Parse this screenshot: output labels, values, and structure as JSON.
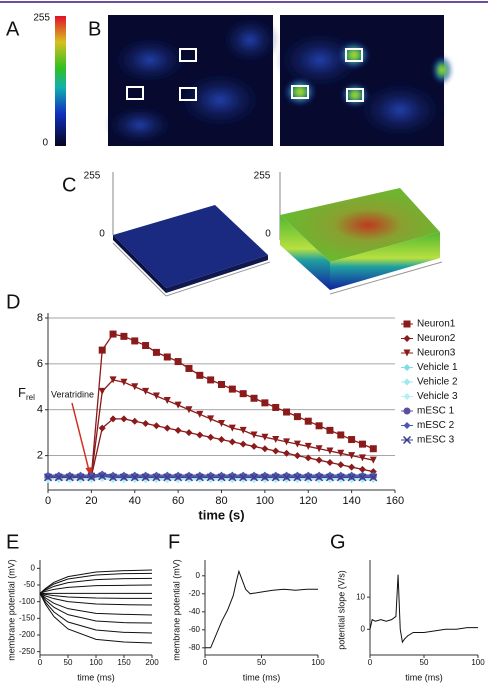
{
  "figure": {
    "panel_labels": [
      "A",
      "B",
      "C",
      "D",
      "E",
      "F",
      "G"
    ],
    "colorbar_labels": [
      "255",
      "0"
    ],
    "surface_labels": [
      [
        "255",
        "0"
      ],
      [
        "255",
        "0"
      ]
    ]
  },
  "chart_data": [
    {
      "type": "line",
      "panel": "D",
      "xlabel": "time (s)",
      "ylabel": "F",
      "ylabel_sub": "rel",
      "annotation": "Veratridine",
      "xlim": [
        0,
        160
      ],
      "xticks": [
        0,
        20,
        40,
        60,
        80,
        100,
        120,
        140,
        160
      ],
      "ylim": [
        0.5,
        8
      ],
      "yticks": [
        2,
        4,
        6,
        8
      ],
      "grid": true,
      "legend": "right",
      "x": [
        0,
        5,
        10,
        15,
        20,
        25,
        30,
        35,
        40,
        45,
        50,
        55,
        60,
        65,
        70,
        75,
        80,
        85,
        90,
        95,
        100,
        105,
        110,
        115,
        120,
        125,
        130,
        135,
        140,
        145,
        150
      ],
      "series": [
        {
          "name": "Neuron1",
          "color": "#8b1a1a",
          "marker": "square",
          "values": [
            1.05,
            1.05,
            1.05,
            1.05,
            1.1,
            6.6,
            7.3,
            7.2,
            7.0,
            6.8,
            6.5,
            6.3,
            6.1,
            5.8,
            5.5,
            5.3,
            5.1,
            4.9,
            4.7,
            4.5,
            4.3,
            4.1,
            3.9,
            3.7,
            3.5,
            3.3,
            3.1,
            2.9,
            2.7,
            2.5,
            2.3
          ]
        },
        {
          "name": "Neuron2",
          "color": "#8b1a1a",
          "marker": "diamond",
          "values": [
            1.05,
            1.05,
            1.05,
            1.05,
            1.1,
            3.2,
            3.6,
            3.6,
            3.5,
            3.4,
            3.3,
            3.2,
            3.1,
            3.0,
            2.9,
            2.8,
            2.7,
            2.6,
            2.5,
            2.4,
            2.3,
            2.2,
            2.1,
            2.0,
            1.9,
            1.8,
            1.7,
            1.6,
            1.5,
            1.4,
            1.3
          ]
        },
        {
          "name": "Neuron3",
          "color": "#8b1a1a",
          "marker": "triangle",
          "values": [
            1.05,
            1.05,
            1.05,
            1.05,
            1.1,
            4.8,
            5.3,
            5.2,
            5.0,
            4.8,
            4.6,
            4.4,
            4.2,
            4.0,
            3.8,
            3.6,
            3.4,
            3.2,
            3.1,
            2.9,
            2.8,
            2.7,
            2.6,
            2.5,
            2.4,
            2.3,
            2.2,
            2.1,
            2.0,
            1.9,
            1.8
          ]
        },
        {
          "name": "Vehicle 1",
          "color": "#7fdde8",
          "marker": "diamond",
          "values": [
            1.0,
            1.0,
            1.0,
            1.0,
            1.0,
            1.05,
            1.0,
            1.0,
            1.0,
            1.0,
            1.0,
            1.0,
            1.0,
            1.0,
            1.0,
            1.0,
            1.0,
            1.0,
            1.0,
            1.0,
            1.0,
            1.0,
            1.0,
            1.0,
            1.0,
            1.0,
            1.0,
            1.0,
            1.0,
            1.0,
            1.0
          ]
        },
        {
          "name": "Vehicle 2",
          "color": "#9ee8f0",
          "marker": "diamond",
          "values": [
            0.95,
            0.95,
            0.95,
            0.95,
            0.95,
            1.0,
            0.95,
            0.95,
            0.95,
            0.95,
            0.95,
            0.95,
            0.95,
            0.95,
            0.95,
            0.95,
            0.95,
            0.95,
            0.95,
            0.95,
            0.95,
            0.95,
            0.95,
            0.95,
            0.95,
            0.95,
            0.95,
            0.95,
            0.95,
            0.95,
            0.95
          ]
        },
        {
          "name": "Vehicle 3",
          "color": "#b5eef4",
          "marker": "diamond",
          "values": [
            0.98,
            0.98,
            0.98,
            0.98,
            0.98,
            1.02,
            0.98,
            0.98,
            0.98,
            0.98,
            0.98,
            0.98,
            0.98,
            0.98,
            0.98,
            0.98,
            0.98,
            0.98,
            0.98,
            0.98,
            0.98,
            0.98,
            0.98,
            0.98,
            0.98,
            0.98,
            0.98,
            0.98,
            0.98,
            0.98,
            0.98
          ]
        },
        {
          "name": "mESC 1",
          "color": "#5b4ea0",
          "marker": "circle",
          "values": [
            1.1,
            1.1,
            1.1,
            1.1,
            1.1,
            1.15,
            1.1,
            1.1,
            1.1,
            1.1,
            1.1,
            1.1,
            1.1,
            1.1,
            1.1,
            1.1,
            1.1,
            1.1,
            1.1,
            1.1,
            1.1,
            1.1,
            1.1,
            1.1,
            1.1,
            1.1,
            1.1,
            1.1,
            1.1,
            1.1,
            1.1
          ]
        },
        {
          "name": "mESC 2",
          "color": "#4a5ab0",
          "marker": "diamond",
          "values": [
            1.15,
            1.15,
            1.15,
            1.15,
            1.15,
            1.2,
            1.15,
            1.15,
            1.15,
            1.15,
            1.15,
            1.15,
            1.15,
            1.15,
            1.15,
            1.15,
            1.15,
            1.15,
            1.15,
            1.15,
            1.15,
            1.15,
            1.15,
            1.15,
            1.15,
            1.15,
            1.15,
            1.15,
            1.15,
            1.15,
            1.15
          ]
        },
        {
          "name": "mESC 3",
          "color": "#3d3d8f",
          "marker": "cross",
          "values": [
            1.05,
            1.05,
            1.05,
            1.05,
            1.05,
            1.1,
            1.05,
            1.05,
            1.05,
            1.05,
            1.05,
            1.05,
            1.05,
            1.05,
            1.05,
            1.05,
            1.05,
            1.05,
            1.05,
            1.05,
            1.05,
            1.05,
            1.05,
            1.05,
            1.05,
            1.05,
            1.05,
            1.05,
            1.05,
            1.05,
            1.05
          ]
        }
      ]
    },
    {
      "type": "line",
      "panel": "E",
      "xlabel": "time (ms)",
      "ylabel": "membrane potential (mV)",
      "xlim": [
        0,
        200
      ],
      "xticks": [
        0,
        50,
        100,
        150,
        200
      ],
      "ylim": [
        -260,
        10
      ],
      "yticks": [
        0,
        -50,
        -100,
        -150,
        -200,
        -250
      ],
      "x": [
        0,
        10,
        25,
        50,
        100,
        150,
        200
      ],
      "series": [
        {
          "color": "#111111",
          "values": [
            -75,
            -60,
            -42,
            -25,
            -11,
            -7,
            -5
          ]
        },
        {
          "color": "#111111",
          "values": [
            -75,
            -62,
            -47,
            -32,
            -20,
            -16,
            -15
          ]
        },
        {
          "color": "#111111",
          "values": [
            -75,
            -65,
            -54,
            -43,
            -34,
            -31,
            -30
          ]
        },
        {
          "color": "#111111",
          "values": [
            -75,
            -69,
            -63,
            -57,
            -52,
            -51,
            -50
          ]
        },
        {
          "color": "#111111",
          "values": [
            -75,
            -75,
            -75,
            -75,
            -75,
            -75,
            -75
          ]
        },
        {
          "color": "#111111",
          "values": [
            -75,
            -78,
            -82,
            -86,
            -89,
            -90,
            -90
          ]
        },
        {
          "color": "#111111",
          "values": [
            -75,
            -83,
            -91,
            -100,
            -107,
            -109,
            -110
          ]
        },
        {
          "color": "#111111",
          "values": [
            -75,
            -89,
            -105,
            -121,
            -135,
            -138,
            -140
          ]
        },
        {
          "color": "#111111",
          "values": [
            -75,
            -95,
            -117,
            -139,
            -158,
            -163,
            -164
          ]
        },
        {
          "color": "#111111",
          "values": [
            -75,
            -102,
            -131,
            -161,
            -185,
            -192,
            -194
          ]
        },
        {
          "color": "#111111",
          "values": [
            -75,
            -108,
            -145,
            -182,
            -213,
            -221,
            -224
          ]
        }
      ]
    },
    {
      "type": "line",
      "panel": "F",
      "xlabel": "time (ms)",
      "ylabel": "membrane potential (mV)",
      "xlim": [
        0,
        100
      ],
      "xticks": [
        0,
        50,
        100
      ],
      "ylim": [
        -88,
        12
      ],
      "yticks": [
        0,
        -20,
        -40,
        -60,
        -80
      ],
      "x": [
        0,
        5,
        10,
        15,
        20,
        25,
        28,
        30,
        33,
        36,
        40,
        50,
        60,
        70,
        80,
        90,
        100
      ],
      "series": [
        {
          "color": "#111111",
          "values": [
            -80,
            -80,
            -65,
            -50,
            -38,
            -22,
            -5,
            5,
            -5,
            -15,
            -20,
            -18,
            -16,
            -15,
            -16,
            -15,
            -15
          ]
        }
      ]
    },
    {
      "type": "line",
      "panel": "G",
      "xlabel": "time (ms)",
      "ylabel": "potential slope (V/s)",
      "xlim": [
        0,
        100
      ],
      "xticks": [
        0,
        50,
        100
      ],
      "ylim": [
        -8,
        20
      ],
      "yticks": [
        0,
        10
      ],
      "x": [
        0,
        2,
        5,
        10,
        15,
        20,
        24,
        26,
        28,
        30,
        32,
        35,
        40,
        50,
        60,
        70,
        80,
        90,
        100
      ],
      "series": [
        {
          "color": "#111111",
          "values": [
            0,
            3,
            2.5,
            3,
            2.5,
            3,
            4,
            17,
            0,
            -4,
            -3,
            -2,
            -1,
            -1,
            -0.5,
            0,
            0,
            0.5,
            0.5
          ]
        }
      ]
    }
  ]
}
